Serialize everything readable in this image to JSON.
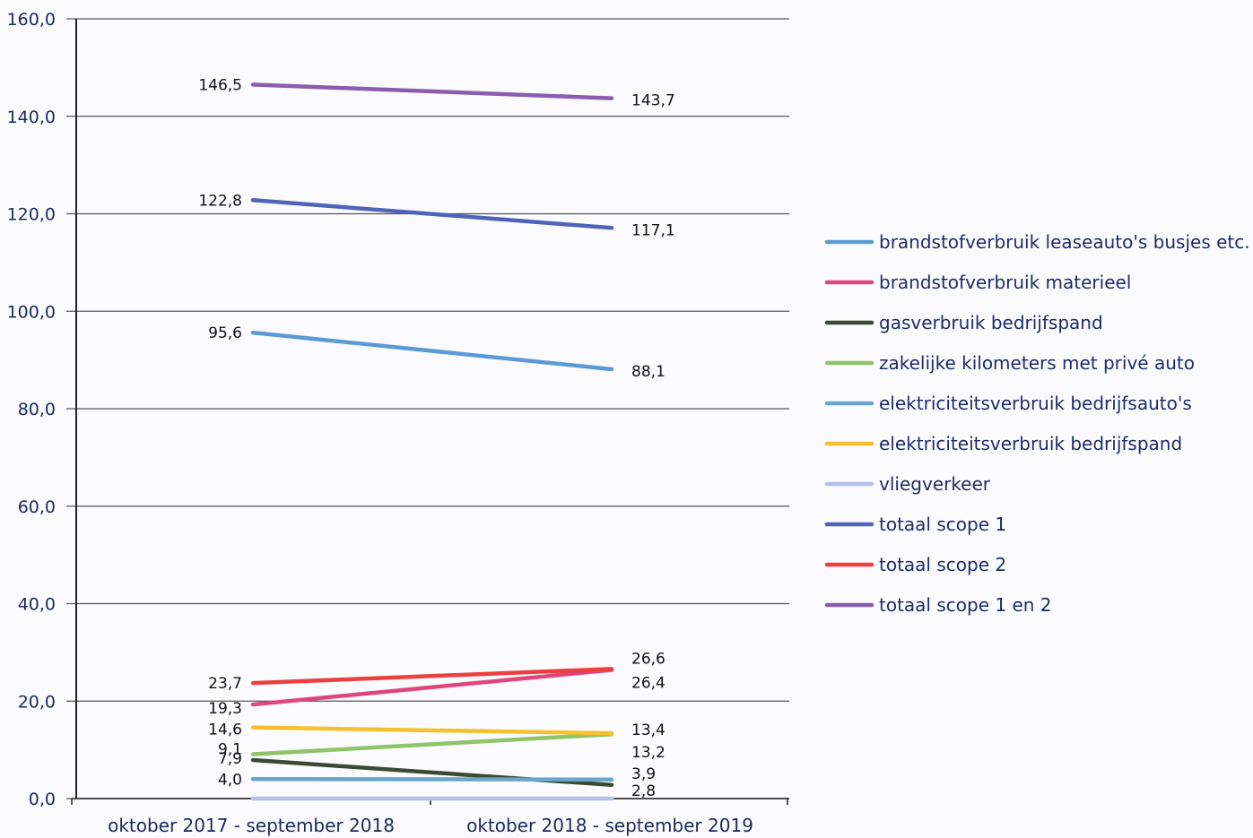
{
  "chart_data": {
    "type": "line",
    "categories": [
      "oktober 2017 - september 2018",
      "oktober 2018 - september 2019"
    ],
    "ylim": [
      0,
      160
    ],
    "yticks": [
      "0,0",
      "20,0",
      "40,0",
      "60,0",
      "80,0",
      "100,0",
      "120,0",
      "140,0",
      "160,0"
    ],
    "grid": true,
    "legend_position": "right",
    "series": [
      {
        "name": "brandstofverbruik leaseauto's busjes etc.",
        "color": "#5b9bd5",
        "values": [
          95.6,
          88.1
        ],
        "labels": [
          "95,6",
          "88,1"
        ]
      },
      {
        "name": "brandstofverbruik materieel",
        "color": "#e0457b",
        "values": [
          19.3,
          26.4
        ],
        "labels": [
          "19,3",
          "26,4"
        ]
      },
      {
        "name": "gasverbruik bedrijfspand",
        "color": "#3c4a33",
        "values": [
          7.9,
          2.8
        ],
        "labels": [
          "7,9",
          "2,8"
        ]
      },
      {
        "name": "zakelijke kilometers met privé auto",
        "color": "#8fc46a",
        "values": [
          9.1,
          13.2
        ],
        "labels": [
          "9,1",
          "13,2"
        ]
      },
      {
        "name": "elektriciteitsverbruik bedrijfsauto's",
        "color": "#6aa6cc",
        "values": [
          4.0,
          3.9
        ],
        "labels": [
          "4,0",
          "3,9"
        ]
      },
      {
        "name": "elektriciteitsverbruik bedrijfspand",
        "color": "#f5c12e",
        "values": [
          14.6,
          13.4
        ],
        "labels": [
          "14,6",
          "13,4"
        ]
      },
      {
        "name": "vliegverkeer",
        "color": "#b4c0ea",
        "values": [
          0.0,
          0.0
        ],
        "labels": [
          "",
          ""
        ]
      },
      {
        "name": "totaal scope 1",
        "color": "#4f63b8",
        "values": [
          122.8,
          117.1
        ],
        "labels": [
          "122,8",
          "117,1"
        ]
      },
      {
        "name": "totaal scope 2",
        "color": "#ec3f3f",
        "values": [
          23.7,
          26.6
        ],
        "labels": [
          "23,7",
          "26,6"
        ]
      },
      {
        "name": "totaal scope 1 en 2",
        "color": "#8a5cb0",
        "values": [
          146.5,
          143.7
        ],
        "labels": [
          "146,5",
          "143,7"
        ]
      }
    ]
  }
}
